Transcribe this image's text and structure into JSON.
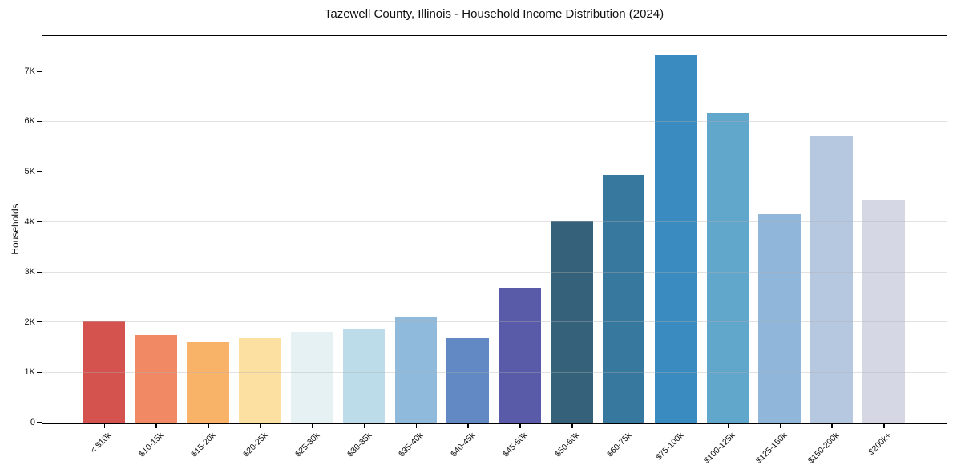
{
  "chart_data": {
    "type": "bar",
    "title": "Tazewell County, Illinois - Household Income Distribution (2024)",
    "xlabel": "",
    "ylabel": "Households",
    "categories": [
      "< $10k",
      "$10-15k",
      "$15-20k",
      "$20-25k",
      "$25-30k",
      "$30-35k",
      "$35-40k",
      "$40-45k",
      "$45-50k",
      "$50-60k",
      "$60-75k",
      "$75-100k",
      "$100-125k",
      "$125-150k",
      "$150-200k",
      "$200k+"
    ],
    "values": [
      2030,
      1750,
      1620,
      1700,
      1820,
      1860,
      2100,
      1690,
      2690,
      4020,
      4940,
      7340,
      6180,
      4160,
      5710,
      4430
    ],
    "bar_colors": [
      "#d4534f",
      "#f18a64",
      "#f9b369",
      "#fce0a2",
      "#e5f1f3",
      "#bcdcea",
      "#90badc",
      "#6289c3",
      "#5a5ba8",
      "#36617a",
      "#36789e",
      "#3a8cc0",
      "#61a6cb",
      "#90b7d9",
      "#b6c7e0",
      "#d6d7e5"
    ],
    "ylim": [
      0,
      7700
    ],
    "ytick_values": [
      0,
      1000,
      2000,
      3000,
      4000,
      5000,
      6000,
      7000
    ],
    "ytick_labels": [
      "0",
      "1K",
      "2K",
      "3K",
      "4K",
      "5K",
      "6K",
      "7K"
    ],
    "grid": "horizontal",
    "grid_above_bars": true,
    "legend": "none",
    "background_color": "#ffffff",
    "spine_color": "#000000"
  }
}
